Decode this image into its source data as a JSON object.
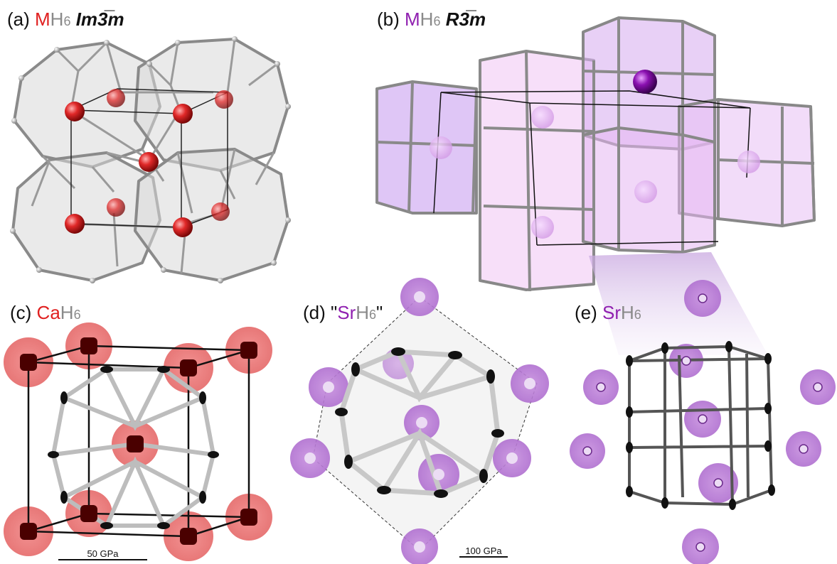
{
  "panels": {
    "a": {
      "prefix": "(a) ",
      "metal": "M",
      "hydrogen": "H",
      "sub": "6",
      "space_group": "Im3̅m",
      "metal_color": "#e02020"
    },
    "b": {
      "prefix": "(b) ",
      "metal": "M",
      "hydrogen": "H",
      "sub": "6",
      "space_group": "R3̅m",
      "metal_color": "#9020b0"
    },
    "c": {
      "prefix": "(c) ",
      "metal": "Ca",
      "hydrogen": "H",
      "sub": "6",
      "metal_color": "#e02020"
    },
    "d": {
      "prefix": "(d) ",
      "quote_open": "\"",
      "metal": "Sr",
      "hydrogen": "H",
      "sub": "6",
      "quote_close": "\"",
      "metal_color": "#9020b0"
    },
    "e": {
      "prefix": "(e) ",
      "metal": "Sr",
      "hydrogen": "H",
      "sub": "6",
      "metal_color": "#9020b0"
    }
  },
  "scale_bars": {
    "c": "50 GPa",
    "d": "100 GPa"
  },
  "colors": {
    "cage_grey": "#c8c8c8",
    "rod": "#8c8c8c",
    "ca_atom": "#e03030",
    "sr_atom": "#9a40c0",
    "cage_pink": "#e8b8f0",
    "ellipsoid_dark": "#111111"
  }
}
